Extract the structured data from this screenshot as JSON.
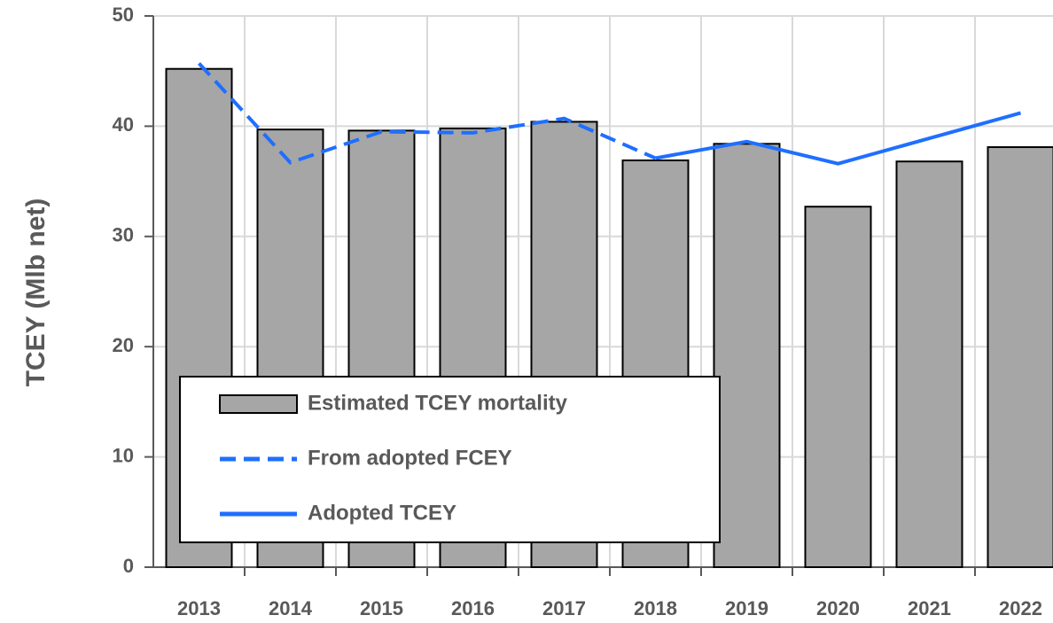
{
  "chart_data": {
    "type": "bar-line",
    "y_label": "TCEY (Mlb net)",
    "categories": [
      "2013",
      "2014",
      "2015",
      "2016",
      "2017",
      "2018",
      "2019",
      "2020",
      "2021",
      "2022"
    ],
    "series": [
      {
        "name": "Estimated TCEY mortality",
        "type": "bar",
        "color": "#a6a6a6",
        "values": [
          45.2,
          39.7,
          39.6,
          39.8,
          40.4,
          36.9,
          38.4,
          32.7,
          36.8,
          38.1
        ]
      },
      {
        "name": "From adopted FCEY",
        "type": "line",
        "dashed": true,
        "color": "#1f6fff",
        "values": [
          45.7,
          36.7,
          39.5,
          39.4,
          40.7,
          37.1,
          null,
          null,
          null,
          null
        ]
      },
      {
        "name": "Adopted TCEY",
        "type": "line",
        "dashed": false,
        "color": "#1f6fff",
        "values": [
          null,
          null,
          null,
          null,
          null,
          37.1,
          38.6,
          36.6,
          38.9,
          41.2
        ]
      }
    ],
    "ylim": [
      0,
      50
    ],
    "yticks": [
      0,
      10,
      20,
      30,
      40,
      50
    ],
    "grid": true
  }
}
